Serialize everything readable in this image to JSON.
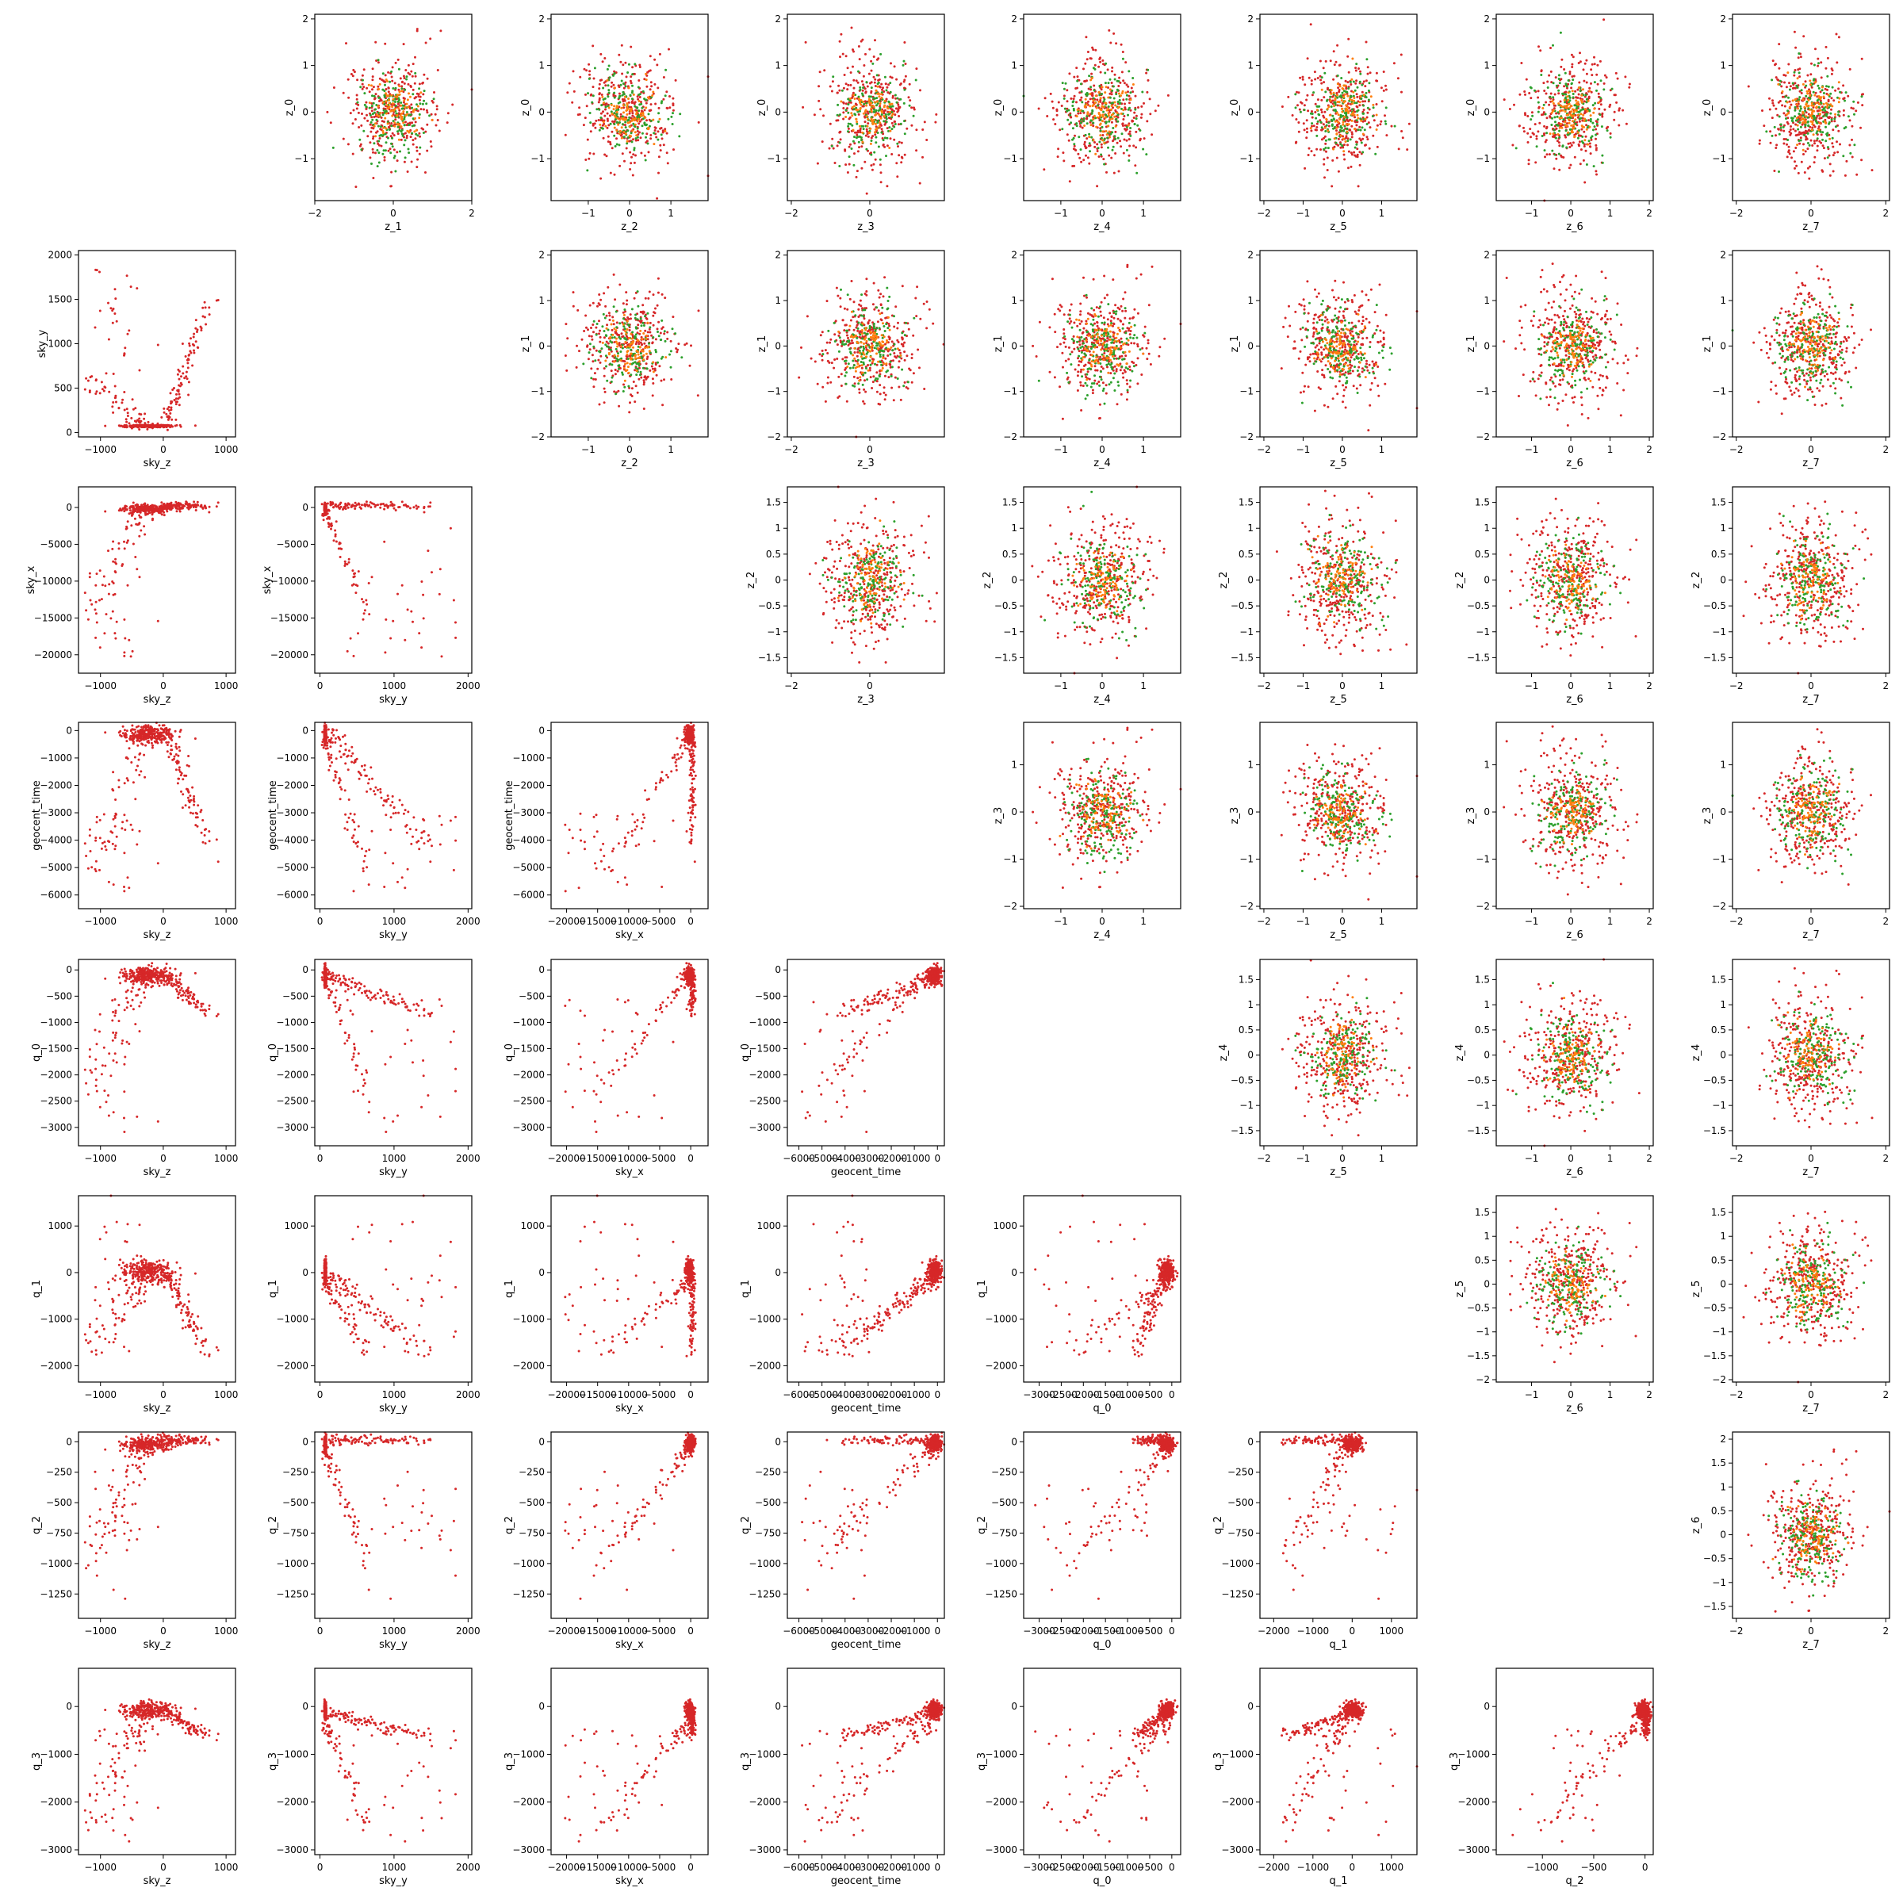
{
  "figure": {
    "layout": "lower-triangle latent-space scatter grid, upper-triangle normal-sample scatter grid",
    "colors": {
      "posterior": "#d62728",
      "prior": "#2ca02c",
      "overlap": "#ff7f0e",
      "axes": "#000000",
      "background": "#ffffff"
    }
  },
  "chart_data": {
    "type": "scatter",
    "grid": false,
    "variables": {
      "sky_z": {
        "label": "sky_z",
        "lim": [
          -1350,
          1150
        ],
        "ticks": [
          -1000,
          0,
          1000
        ]
      },
      "sky_y": {
        "label": "sky_y",
        "lim": [
          -70,
          2050
        ],
        "ticks": [
          0,
          1000,
          2000
        ]
      },
      "sky_x": {
        "label": "sky_x",
        "lim": [
          -22500,
          2800
        ],
        "ticks": [
          -20000,
          -15000,
          -10000,
          -5000,
          0
        ]
      },
      "geocent_time": {
        "label": "geocent_time",
        "lim": [
          -6500,
          300
        ],
        "ticks": [
          -6000,
          -5000,
          -4000,
          -3000,
          -2000,
          -1000,
          0
        ]
      },
      "q_0": {
        "label": "q_0",
        "lim": [
          -3350,
          200
        ],
        "ticks": [
          -3000,
          -2500,
          -2000,
          -1500,
          -1000,
          -500,
          0
        ]
      },
      "q_1": {
        "label": "q_1",
        "lim": [
          -2350,
          1650
        ],
        "ticks": [
          -2000,
          -1000,
          0,
          1000
        ]
      },
      "q_2": {
        "label": "q_2",
        "lim": [
          -1450,
          80
        ],
        "ticks": [
          -1250,
          -1000,
          -750,
          -500,
          -250,
          0
        ]
      },
      "q_3": {
        "label": "q_3",
        "lim": [
          -3100,
          800
        ],
        "ticks": [
          -3000,
          -2000,
          -1000,
          0
        ]
      }
    },
    "lower_panels": [
      {
        "x": "sky_z",
        "y": "sky_y",
        "ylim": [
          -50,
          2050
        ],
        "yticks": [
          0,
          500,
          1000,
          1500,
          2000
        ]
      },
      {
        "x": "sky_z",
        "y": "sky_x"
      },
      {
        "x": "sky_y",
        "y": "sky_x"
      },
      {
        "x": "sky_z",
        "y": "geocent_time"
      },
      {
        "x": "sky_y",
        "y": "geocent_time"
      },
      {
        "x": "sky_x",
        "y": "geocent_time"
      },
      {
        "x": "sky_z",
        "y": "q_0"
      },
      {
        "x": "sky_y",
        "y": "q_0"
      },
      {
        "x": "sky_x",
        "y": "q_0"
      },
      {
        "x": "geocent_time",
        "y": "q_0"
      },
      {
        "x": "sky_z",
        "y": "q_1"
      },
      {
        "x": "sky_y",
        "y": "q_1"
      },
      {
        "x": "sky_x",
        "y": "q_1"
      },
      {
        "x": "geocent_time",
        "y": "q_1"
      },
      {
        "x": "q_0",
        "y": "q_1"
      },
      {
        "x": "sky_z",
        "y": "q_2"
      },
      {
        "x": "sky_y",
        "y": "q_2"
      },
      {
        "x": "sky_x",
        "y": "q_2"
      },
      {
        "x": "geocent_time",
        "y": "q_2"
      },
      {
        "x": "q_0",
        "y": "q_2"
      },
      {
        "x": "q_1",
        "y": "q_2"
      },
      {
        "x": "sky_z",
        "y": "q_3"
      },
      {
        "x": "sky_y",
        "y": "q_3"
      },
      {
        "x": "sky_x",
        "y": "q_3"
      },
      {
        "x": "geocent_time",
        "y": "q_3"
      },
      {
        "x": "q_0",
        "y": "q_3"
      },
      {
        "x": "q_1",
        "y": "q_3"
      },
      {
        "x": "q_2",
        "y": "q_3",
        "xlim": [
          -1450,
          80
        ],
        "xticks": [
          -1000,
          -500,
          0
        ]
      }
    ],
    "upper_panels": [
      {
        "x": "z_1",
        "y": "z_0",
        "xlim": [
          -2,
          2
        ],
        "xticks": [
          -2,
          0,
          2
        ],
        "ylim": [
          -1.9,
          2.1
        ],
        "yticks": [
          -1,
          0,
          1,
          2
        ]
      },
      {
        "x": "z_2",
        "y": "z_0",
        "xlim": [
          -1.9,
          1.9
        ],
        "xticks": [
          -1,
          0,
          1
        ],
        "ylim": [
          -1.9,
          2.1
        ],
        "yticks": [
          -1,
          0,
          1,
          2
        ]
      },
      {
        "x": "z_3",
        "y": "z_0",
        "xlim": [
          -2.1,
          1.9
        ],
        "xticks": [
          -2,
          0
        ],
        "ylim": [
          -1.9,
          2.1
        ],
        "yticks": [
          -1,
          0,
          1,
          2
        ]
      },
      {
        "x": "z_4",
        "y": "z_0",
        "xlim": [
          -1.9,
          1.9
        ],
        "xticks": [
          -1,
          0,
          1
        ],
        "ylim": [
          -1.9,
          2.1
        ],
        "yticks": [
          -1,
          0,
          1,
          2
        ]
      },
      {
        "x": "z_5",
        "y": "z_0",
        "xlim": [
          -2.1,
          1.9
        ],
        "xticks": [
          -2,
          -1,
          0,
          1
        ],
        "ylim": [
          -1.9,
          2.1
        ],
        "yticks": [
          -1,
          0,
          1,
          2
        ]
      },
      {
        "x": "z_6",
        "y": "z_0",
        "xlim": [
          -1.9,
          2.1
        ],
        "xticks": [
          -1,
          0,
          1,
          2
        ],
        "ylim": [
          -1.9,
          2.1
        ],
        "yticks": [
          -1,
          0,
          1,
          2
        ]
      },
      {
        "x": "z_7",
        "y": "z_0",
        "xlim": [
          -2.1,
          2.1
        ],
        "xticks": [
          -2,
          0,
          2
        ],
        "ylim": [
          -1.9,
          2.1
        ],
        "yticks": [
          -1,
          0,
          1,
          2
        ]
      },
      {
        "x": "z_2",
        "y": "z_1",
        "xlim": [
          -1.9,
          1.9
        ],
        "xticks": [
          -1,
          0,
          1
        ],
        "ylim": [
          -2,
          2.1
        ],
        "yticks": [
          -2,
          -1,
          0,
          1,
          2
        ]
      },
      {
        "x": "z_3",
        "y": "z_1",
        "xlim": [
          -2.1,
          1.9
        ],
        "xticks": [
          -2,
          0
        ],
        "ylim": [
          -2,
          2.1
        ],
        "yticks": [
          -2,
          -1,
          0,
          1,
          2
        ]
      },
      {
        "x": "z_4",
        "y": "z_1",
        "xlim": [
          -1.9,
          1.9
        ],
        "xticks": [
          -1,
          0,
          1
        ],
        "ylim": [
          -2,
          2.1
        ],
        "yticks": [
          -2,
          -1,
          0,
          1,
          2
        ]
      },
      {
        "x": "z_5",
        "y": "z_1",
        "xlim": [
          -2.1,
          1.9
        ],
        "xticks": [
          -2,
          -1,
          0,
          1
        ],
        "ylim": [
          -2,
          2.1
        ],
        "yticks": [
          -2,
          -1,
          0,
          1,
          2
        ]
      },
      {
        "x": "z_6",
        "y": "z_1",
        "xlim": [
          -1.9,
          2.1
        ],
        "xticks": [
          -1,
          0,
          1,
          2
        ],
        "ylim": [
          -2,
          2.1
        ],
        "yticks": [
          -2,
          -1,
          0,
          1,
          2
        ]
      },
      {
        "x": "z_7",
        "y": "z_1",
        "xlim": [
          -2.1,
          2.1
        ],
        "xticks": [
          -2,
          0,
          2
        ],
        "ylim": [
          -2,
          2.1
        ],
        "yticks": [
          -2,
          -1,
          0,
          1,
          2
        ]
      },
      {
        "x": "z_3",
        "y": "z_2",
        "xlim": [
          -2.1,
          1.9
        ],
        "xticks": [
          -2,
          0
        ],
        "ylim": [
          -1.8,
          1.8
        ],
        "yticks": [
          -1.5,
          -1,
          -0.5,
          0,
          0.5,
          1,
          1.5
        ]
      },
      {
        "x": "z_4",
        "y": "z_2",
        "xlim": [
          -1.9,
          1.9
        ],
        "xticks": [
          -1,
          0,
          1
        ],
        "ylim": [
          -1.8,
          1.8
        ],
        "yticks": [
          -1.5,
          -1,
          -0.5,
          0,
          0.5,
          1,
          1.5
        ]
      },
      {
        "x": "z_5",
        "y": "z_2",
        "xlim": [
          -2.1,
          1.9
        ],
        "xticks": [
          -2,
          -1,
          0,
          1
        ],
        "ylim": [
          -1.8,
          1.8
        ],
        "yticks": [
          -1.5,
          -1,
          -0.5,
          0,
          0.5,
          1,
          1.5
        ]
      },
      {
        "x": "z_6",
        "y": "z_2",
        "xlim": [
          -1.9,
          2.1
        ],
        "xticks": [
          -1,
          0,
          1,
          2
        ],
        "ylim": [
          -1.8,
          1.8
        ],
        "yticks": [
          -1.5,
          -1,
          -0.5,
          0,
          0.5,
          1,
          1.5
        ]
      },
      {
        "x": "z_7",
        "y": "z_2",
        "xlim": [
          -2.1,
          2.1
        ],
        "xticks": [
          -2,
          0,
          2
        ],
        "ylim": [
          -1.8,
          1.8
        ],
        "yticks": [
          -1.5,
          -1,
          -0.5,
          0,
          0.5,
          1,
          1.5
        ]
      },
      {
        "x": "z_4",
        "y": "z_3",
        "xlim": [
          -1.9,
          1.9
        ],
        "xticks": [
          -1,
          0,
          1
        ],
        "ylim": [
          -2.05,
          1.9
        ],
        "yticks": [
          -2,
          -1,
          0,
          1
        ]
      },
      {
        "x": "z_5",
        "y": "z_3",
        "xlim": [
          -2.1,
          1.9
        ],
        "xticks": [
          -2,
          -1,
          0,
          1
        ],
        "ylim": [
          -2.05,
          1.9
        ],
        "yticks": [
          -2,
          -1,
          0,
          1
        ]
      },
      {
        "x": "z_6",
        "y": "z_3",
        "xlim": [
          -1.9,
          2.1
        ],
        "xticks": [
          -1,
          0,
          1,
          2
        ],
        "ylim": [
          -2.05,
          1.9
        ],
        "yticks": [
          -2,
          -1,
          0,
          1
        ]
      },
      {
        "x": "z_7",
        "y": "z_3",
        "xlim": [
          -2.1,
          2.1
        ],
        "xticks": [
          -2,
          0,
          2
        ],
        "ylim": [
          -2.05,
          1.9
        ],
        "yticks": [
          -2,
          -1,
          0,
          1
        ]
      },
      {
        "x": "z_5",
        "y": "z_4",
        "xlim": [
          -2.1,
          1.9
        ],
        "xticks": [
          -2,
          -1,
          0,
          1
        ],
        "ylim": [
          -1.8,
          1.9
        ],
        "yticks": [
          -1.5,
          -1,
          -0.5,
          0,
          0.5,
          1,
          1.5
        ]
      },
      {
        "x": "z_6",
        "y": "z_4",
        "xlim": [
          -1.9,
          2.1
        ],
        "xticks": [
          -1,
          0,
          1,
          2
        ],
        "ylim": [
          -1.8,
          1.9
        ],
        "yticks": [
          -1.5,
          -1,
          -0.5,
          0,
          0.5,
          1,
          1.5
        ]
      },
      {
        "x": "z_7",
        "y": "z_4",
        "xlim": [
          -2.1,
          2.1
        ],
        "xticks": [
          -2,
          0,
          2
        ],
        "ylim": [
          -1.8,
          1.9
        ],
        "yticks": [
          -1.5,
          -1,
          -0.5,
          0,
          0.5,
          1,
          1.5
        ]
      },
      {
        "x": "z_6",
        "y": "z_5",
        "xlim": [
          -1.9,
          2.1
        ],
        "xticks": [
          -1,
          0,
          1,
          2
        ],
        "ylim": [
          -2.05,
          1.85
        ],
        "yticks": [
          -2,
          -1.5,
          -1,
          -0.5,
          0,
          0.5,
          1,
          1.5
        ]
      },
      {
        "x": "z_7",
        "y": "z_5",
        "xlim": [
          -2.1,
          2.1
        ],
        "xticks": [
          -2,
          0,
          2
        ],
        "ylim": [
          -2.05,
          1.85
        ],
        "yticks": [
          -2,
          -1.5,
          -1,
          -0.5,
          0,
          0.5,
          1,
          1.5
        ]
      },
      {
        "x": "z_7",
        "y": "z_6",
        "xlim": [
          -2.1,
          2.1
        ],
        "xticks": [
          -2,
          0,
          2
        ],
        "ylim": [
          -1.75,
          2.15
        ],
        "yticks": [
          -1.5,
          -1,
          -0.5,
          0,
          0.5,
          1,
          1.5,
          2
        ]
      }
    ],
    "series": [
      {
        "color": "#d62728",
        "shape": "latent samples (lower panels); broad normal cloud, sd ~0.6 (upper panels)"
      },
      {
        "color": "#2ca02c",
        "shape": "narrow normal cloud, sd ~0.45 (upper panels)"
      },
      {
        "color": "#ff7f0e",
        "shape": "dense core, sd ~0.3 (upper panels)"
      }
    ]
  }
}
